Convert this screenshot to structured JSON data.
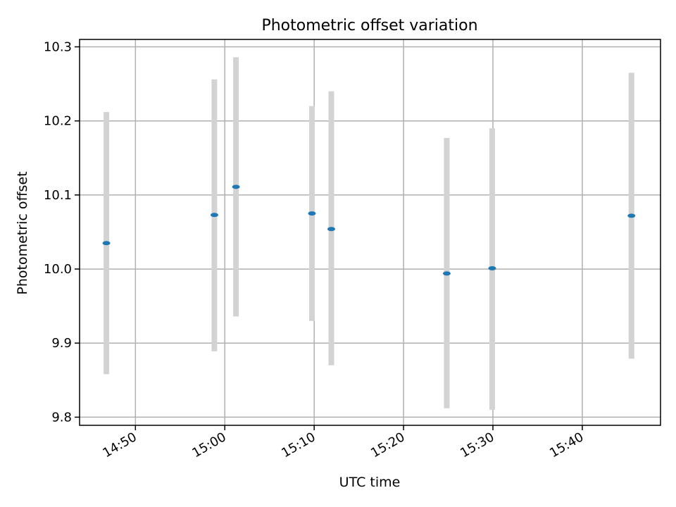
{
  "chart_data": {
    "type": "scatter",
    "title": "Photometric offset variation",
    "xlabel": "UTC time",
    "ylabel": "Photometric offset",
    "x_ticks": [
      "14:50",
      "15:00",
      "15:10",
      "15:20",
      "15:30",
      "15:40"
    ],
    "y_ticks": [
      "9.8",
      "9.9",
      "10.0",
      "10.1",
      "10.2",
      "10.3"
    ],
    "xlim": [
      "14:43:45",
      "15:48:45"
    ],
    "ylim": [
      9.789,
      10.31
    ],
    "grid": true,
    "series": [
      {
        "points": [
          {
            "x": "14:46:45",
            "y": 10.035,
            "err_low": 9.858,
            "err_high": 10.212
          },
          {
            "x": "14:58:50",
            "y": 10.073,
            "err_low": 9.889,
            "err_high": 10.256
          },
          {
            "x": "15:01:15",
            "y": 10.111,
            "err_low": 9.936,
            "err_high": 10.286
          },
          {
            "x": "15:09:45",
            "y": 10.075,
            "err_low": 9.93,
            "err_high": 10.22
          },
          {
            "x": "15:11:55",
            "y": 10.054,
            "err_low": 9.87,
            "err_high": 10.24
          },
          {
            "x": "15:24:50",
            "y": 9.994,
            "err_low": 9.812,
            "err_high": 10.177
          },
          {
            "x": "15:29:55",
            "y": 10.001,
            "err_low": 9.81,
            "err_high": 10.19
          },
          {
            "x": "15:45:30",
            "y": 10.072,
            "err_low": 9.879,
            "err_high": 10.265
          }
        ]
      }
    ],
    "colors": {
      "marker": "#1f77b4",
      "errorbar": "#d3d3d3",
      "grid": "#b0b0b0",
      "axes": "#000000"
    }
  }
}
